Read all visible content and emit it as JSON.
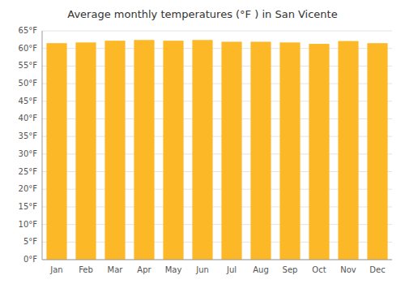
{
  "chart_data": {
    "type": "bar",
    "title": "Average monthly temperatures (°F ) in San Vicente",
    "categories": [
      "Jan",
      "Feb",
      "Mar",
      "Apr",
      "May",
      "Jun",
      "Jul",
      "Aug",
      "Sep",
      "Oct",
      "Nov",
      "Dec"
    ],
    "values": [
      61.5,
      61.7,
      62.2,
      62.4,
      62.2,
      62.4,
      61.9,
      61.9,
      61.7,
      61.3,
      62.1,
      61.5
    ],
    "color": "#FDB827",
    "ylim": [
      0,
      65
    ],
    "yticks": [
      {
        "value": 0,
        "label": "0°F"
      },
      {
        "value": 5,
        "label": "5°F"
      },
      {
        "value": 10,
        "label": "10°F"
      },
      {
        "value": 15,
        "label": "15°F"
      },
      {
        "value": 20,
        "label": "20°F"
      },
      {
        "value": 25,
        "label": "25°F"
      },
      {
        "value": 30,
        "label": "30°F"
      },
      {
        "value": 35,
        "label": "35°F"
      },
      {
        "value": 40,
        "label": "40°F"
      },
      {
        "value": 45,
        "label": "45°F"
      },
      {
        "value": 50,
        "label": "50°F"
      },
      {
        "value": 55,
        "label": "55°F"
      },
      {
        "value": 60,
        "label": "60°F"
      },
      {
        "value": 65,
        "label": "65°F"
      }
    ],
    "grid": true
  }
}
